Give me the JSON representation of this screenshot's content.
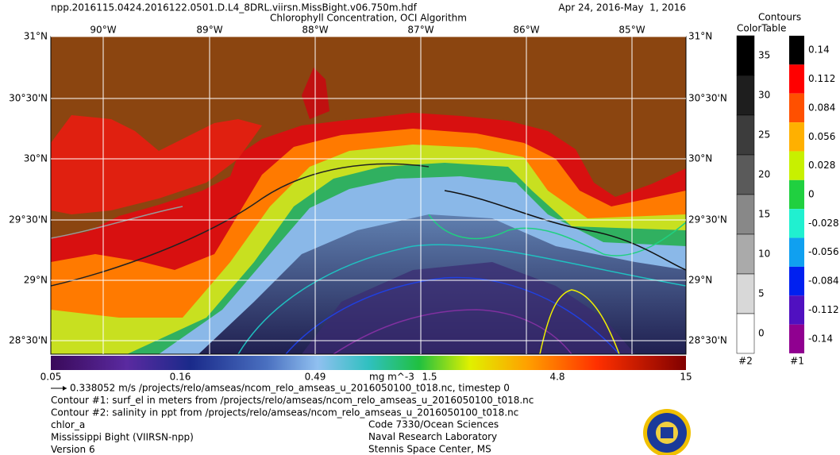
{
  "header": {
    "filename": "npp.2016115.0424.2016122.0501.D.L4_8DRL.viirsn.MissBight.v06.750m.hdf",
    "title": "Chlorophyll Concentration, OCI Algorithm",
    "date_range": "Apr 24, 2016-May  1, 2016"
  },
  "map": {
    "lon_labels": [
      "90°W",
      "89°W",
      "88°W",
      "87°W",
      "86°W",
      "85°W"
    ],
    "lat_labels": [
      "31°N",
      "30°30'N",
      "30°N",
      "29°30'N",
      "29°N",
      "28°30'N"
    ]
  },
  "colorbar": {
    "labels": [
      "0.05",
      "0.16",
      "0.49",
      "1.5",
      "4.8",
      "15"
    ],
    "unit": "mg m^-3"
  },
  "contours": {
    "title": [
      "Contours",
      "ColorTable"
    ],
    "table2": {
      "labels": [
        "35",
        "30",
        "25",
        "20",
        "15",
        "10",
        "5",
        "0"
      ],
      "footer": "#2"
    },
    "table1": {
      "labels": [
        "0.14",
        "0.112",
        "0.084",
        "0.056",
        "0.028",
        "0",
        "-0.028",
        "-0.056",
        "-0.084",
        "-0.112",
        "-0.14"
      ],
      "footer": "#1"
    }
  },
  "footer": {
    "left": [
      "0.338052 m/s /projects/relo/amseas/ncom_relo_amseas_u_2016050100_t018.nc, timestep 0",
      "Contour #1: surf_el in meters from /projects/relo/amseas/ncom_relo_amseas_u_2016050100_t018.nc",
      "Contour #2: salinity in ppt from /projects/relo/amseas/ncom_relo_amseas_u_2016050100_t018.nc",
      "chlor_a",
      "Mississippi Bight (VIIRSN-npp)",
      "Version 6"
    ],
    "right": [
      "Code 7330/Ocean Sciences",
      "Naval Research Laboratory",
      "Stennis Space Center, MS"
    ]
  }
}
